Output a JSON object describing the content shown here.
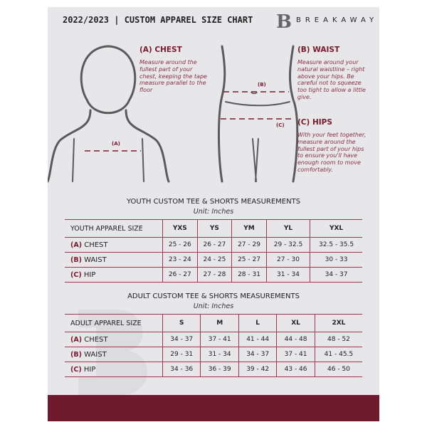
{
  "header": {
    "title": "2022/2023  |  CUSTOM APPAREL SIZE CHART",
    "brand": "BREAKAWAY",
    "logo_letter": "B"
  },
  "measures": {
    "chest": {
      "title": "(A) CHEST",
      "desc": "Measure around the fullest part of your chest, keeping the tape measure parallel to the floor",
      "marker": "(A)"
    },
    "waist": {
      "title": "(B) WAIST",
      "desc": "Measure around your natural waistline – right above your hips. Be careful not to squeeze too tight to allow a little give.",
      "marker": "(B)"
    },
    "hips": {
      "title": "(C) HIPS",
      "desc": "With your feet together, measure around the fullest part of your hips to ensure you'll have enough room to move comfortably.",
      "marker": "(C)"
    }
  },
  "youth": {
    "title": "YOUTH CUSTOM TEE & SHORTS MEASUREMENTS",
    "unit": "Unit: Inches",
    "header": "YOUTH APPAREL SIZE",
    "sizes": [
      "YXS",
      "YS",
      "YM",
      "YL",
      "YXL"
    ],
    "rows": [
      {
        "code": "(A)",
        "name": "CHEST",
        "values": [
          "25 - 26",
          "26 - 27",
          "27 - 29",
          "29 - 32.5",
          "32.5 - 35.5"
        ]
      },
      {
        "code": "(B)",
        "name": "WAIST",
        "values": [
          "23 - 24",
          "24 - 25",
          "25 - 27",
          "27 - 30",
          "30 - 33"
        ]
      },
      {
        "code": "(C)",
        "name": "HIP",
        "values": [
          "26 - 27",
          "27 - 28",
          "28 - 31",
          "31 - 34",
          "34 - 37"
        ]
      }
    ]
  },
  "adult": {
    "title": "ADULT CUSTOM TEE & SHORTS MEASUREMENTS",
    "unit": "Unit: Inches",
    "header": "ADULT APPAREL SIZE",
    "sizes": [
      "S",
      "M",
      "L",
      "XL",
      "2XL"
    ],
    "rows": [
      {
        "code": "(A)",
        "name": "CHEST",
        "values": [
          "34 - 37",
          "37 - 41",
          "41 - 44",
          "44 - 48",
          "48 - 52"
        ]
      },
      {
        "code": "(B)",
        "name": "WAIST",
        "values": [
          "29 - 31",
          "31 - 34",
          "34 - 37",
          "37 - 41",
          "41 - 45.5"
        ]
      },
      {
        "code": "(C)",
        "name": "HIP",
        "values": [
          "34 - 36",
          "36 - 39",
          "39 - 42",
          "43 - 46",
          "46 - 50"
        ]
      }
    ]
  },
  "colors": {
    "accent": "#7a1a2e",
    "footer": "#6f1a2c",
    "background": "#e7e7e9"
  }
}
